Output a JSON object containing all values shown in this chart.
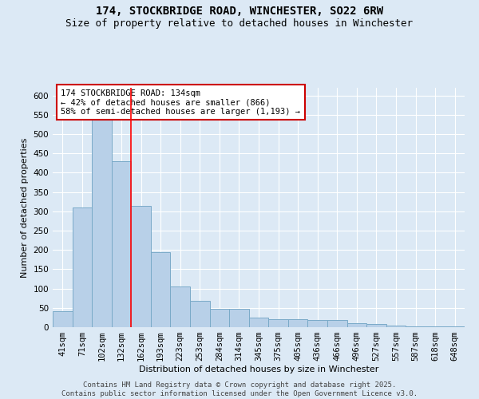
{
  "title_line1": "174, STOCKBRIDGE ROAD, WINCHESTER, SO22 6RW",
  "title_line2": "Size of property relative to detached houses in Winchester",
  "xlabel": "Distribution of detached houses by size in Winchester",
  "ylabel": "Number of detached properties",
  "categories": [
    "41sqm",
    "71sqm",
    "102sqm",
    "132sqm",
    "162sqm",
    "193sqm",
    "223sqm",
    "253sqm",
    "284sqm",
    "314sqm",
    "345sqm",
    "375sqm",
    "405sqm",
    "436sqm",
    "466sqm",
    "496sqm",
    "527sqm",
    "557sqm",
    "587sqm",
    "618sqm",
    "648sqm"
  ],
  "values": [
    42,
    310,
    540,
    430,
    315,
    195,
    105,
    68,
    48,
    48,
    25,
    20,
    20,
    18,
    18,
    10,
    8,
    5,
    3,
    3,
    3
  ],
  "bar_color": "#b8d0e8",
  "bar_edge_color": "#7aaac8",
  "red_line_x": 3,
  "annotation_text": "174 STOCKBRIDGE ROAD: 134sqm\n← 42% of detached houses are smaller (866)\n58% of semi-detached houses are larger (1,193) →",
  "annotation_box_color": "#ffffff",
  "annotation_box_edge": "#cc0000",
  "ylim": [
    0,
    620
  ],
  "yticks": [
    0,
    50,
    100,
    150,
    200,
    250,
    300,
    350,
    400,
    450,
    500,
    550,
    600
  ],
  "background_color": "#dce9f5",
  "plot_bg_color": "#dce9f5",
  "footer_text": "Contains HM Land Registry data © Crown copyright and database right 2025.\nContains public sector information licensed under the Open Government Licence v3.0.",
  "title_fontsize": 10,
  "subtitle_fontsize": 9,
  "axis_label_fontsize": 8,
  "tick_fontsize": 7.5,
  "footer_fontsize": 6.5,
  "annotation_fontsize": 7.5
}
